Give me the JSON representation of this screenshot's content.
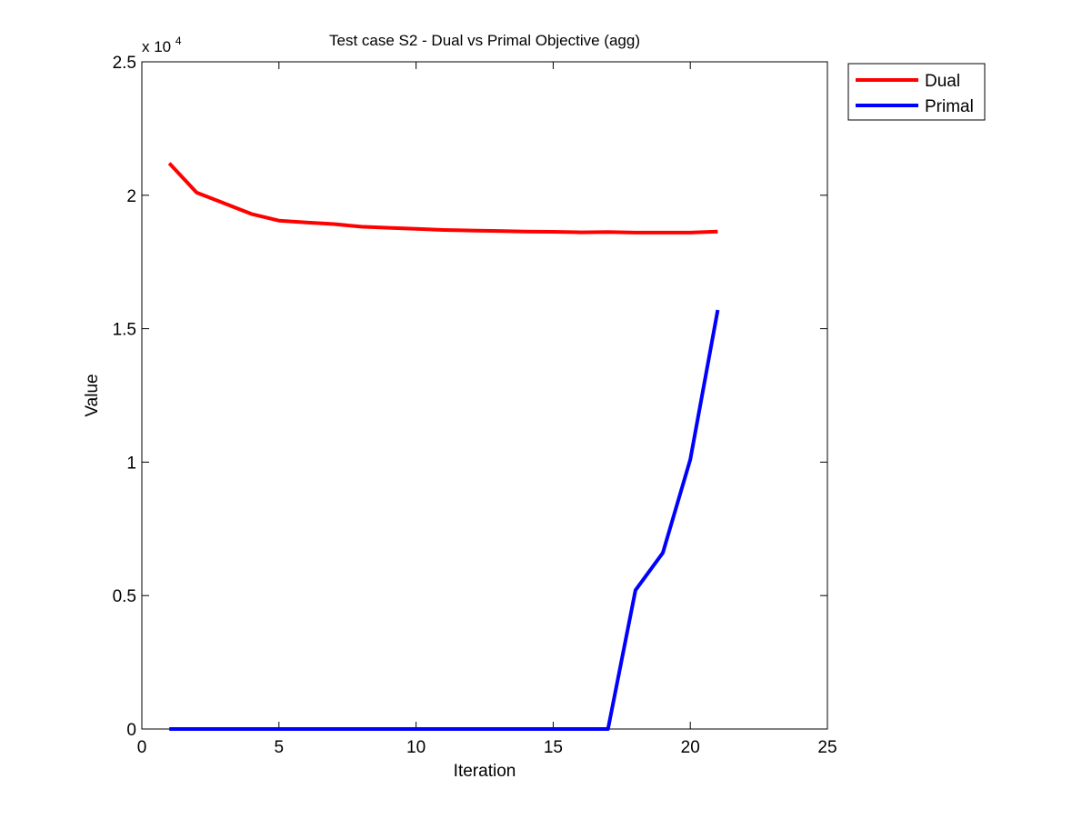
{
  "chart_data": {
    "type": "line",
    "title": "Test case S2 - Dual vs Primal Objective (agg)",
    "xlabel": "Iteration",
    "ylabel": "Value",
    "y_multiplier": "x 10",
    "y_multiplier_exp": "4",
    "xlim": [
      0,
      25
    ],
    "ylim": [
      0,
      25000
    ],
    "x_ticks": [
      0,
      5,
      10,
      15,
      20,
      25
    ],
    "x_tick_labels": [
      "0",
      "5",
      "10",
      "15",
      "20",
      "25"
    ],
    "y_ticks": [
      0,
      5000,
      10000,
      15000,
      20000,
      25000
    ],
    "y_tick_labels": [
      "0",
      "0.5",
      "1",
      "1.5",
      "2",
      "2.5"
    ],
    "grid": false,
    "legend_position": "outside top-right",
    "x": [
      1,
      2,
      3,
      4,
      5,
      6,
      7,
      8,
      9,
      10,
      11,
      12,
      13,
      14,
      15,
      16,
      17,
      18,
      19,
      20,
      21
    ],
    "series": [
      {
        "name": "Dual",
        "color": "#ff0000",
        "values": [
          21200,
          20100,
          19700,
          19300,
          19050,
          18980,
          18920,
          18820,
          18780,
          18740,
          18700,
          18680,
          18660,
          18640,
          18630,
          18610,
          18620,
          18600,
          18600,
          18600,
          18640
        ]
      },
      {
        "name": "Primal",
        "color": "#0000ff",
        "values": [
          0,
          0,
          0,
          0,
          0,
          0,
          0,
          0,
          0,
          0,
          0,
          0,
          0,
          0,
          0,
          0,
          0,
          5200,
          6600,
          10100,
          15700
        ]
      }
    ]
  }
}
